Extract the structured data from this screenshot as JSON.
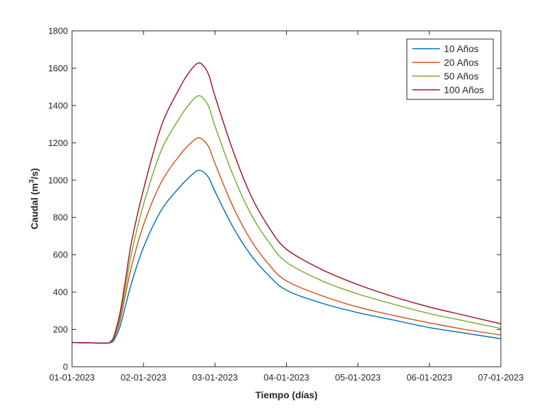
{
  "chart_data": {
    "type": "line",
    "xlabel": "Tiempo (días)",
    "ylabel_prefix": "Caudal (m",
    "ylabel_sup": "3",
    "ylabel_suffix": "/s)",
    "x_tick_labels": [
      "01-01-2023",
      "02-01-2023",
      "03-01-2023",
      "04-01-2023",
      "05-01-2023",
      "06-01-2023",
      "07-01-2023"
    ],
    "x_tick_dates": [
      "2023-01-01",
      "2023-01-02",
      "2023-01-03",
      "2023-01-04",
      "2023-01-05",
      "2023-01-06",
      "2023-01-07"
    ],
    "xlim": [
      "2023-01-01",
      "2023-01-07"
    ],
    "ylim": [
      0,
      1800
    ],
    "y_ticks": [
      0,
      200,
      400,
      600,
      800,
      1000,
      1200,
      1400,
      1600,
      1800
    ],
    "grid": false,
    "legend": "top-right",
    "x": [
      "2023-01-01 00:00",
      "2023-01-01 06:00",
      "2023-01-01 12:00",
      "2023-01-01 13:00",
      "2023-01-01 14:00",
      "2023-01-01 16:00",
      "2023-01-01 18:00",
      "2023-01-01 20:00",
      "2023-01-02 00:00",
      "2023-01-02 06:00",
      "2023-01-02 12:00",
      "2023-01-02 15:00",
      "2023-01-02 18:00",
      "2023-01-02 20:00",
      "2023-01-02 22:00",
      "2023-01-03 00:00",
      "2023-01-03 06:00",
      "2023-01-03 12:00",
      "2023-01-03 18:00",
      "2023-01-04 00:00",
      "2023-01-04 12:00",
      "2023-01-05 00:00",
      "2023-01-05 12:00",
      "2023-01-06 00:00",
      "2023-01-06 12:00",
      "2023-01-07 00:00"
    ],
    "series": [
      {
        "name": "10 Años",
        "color": "#0072BD",
        "values": [
          130,
          128,
          127,
          130,
          140,
          210,
          330,
          450,
          640,
          840,
          960,
          1010,
          1050,
          1045,
          1010,
          940,
          750,
          600,
          490,
          410,
          340,
          290,
          250,
          210,
          180,
          150
        ]
      },
      {
        "name": "20 Años",
        "color": "#D95319",
        "values": [
          130,
          128,
          127,
          133,
          148,
          240,
          390,
          540,
          760,
          990,
          1130,
          1185,
          1225,
          1215,
          1175,
          1090,
          860,
          680,
          550,
          460,
          380,
          320,
          275,
          235,
          200,
          170
        ]
      },
      {
        "name": "50 Años",
        "color": "#77AC30",
        "values": [
          130,
          128,
          127,
          135,
          155,
          260,
          430,
          610,
          870,
          1160,
          1330,
          1400,
          1450,
          1440,
          1390,
          1290,
          1030,
          820,
          670,
          560,
          460,
          390,
          335,
          285,
          245,
          205
        ]
      },
      {
        "name": "100 Años",
        "color": "#A2142F",
        "values": [
          130,
          128,
          127,
          137,
          160,
          280,
          470,
          670,
          950,
          1290,
          1490,
          1570,
          1625,
          1615,
          1560,
          1450,
          1160,
          920,
          750,
          630,
          520,
          440,
          375,
          320,
          275,
          230
        ]
      }
    ]
  }
}
